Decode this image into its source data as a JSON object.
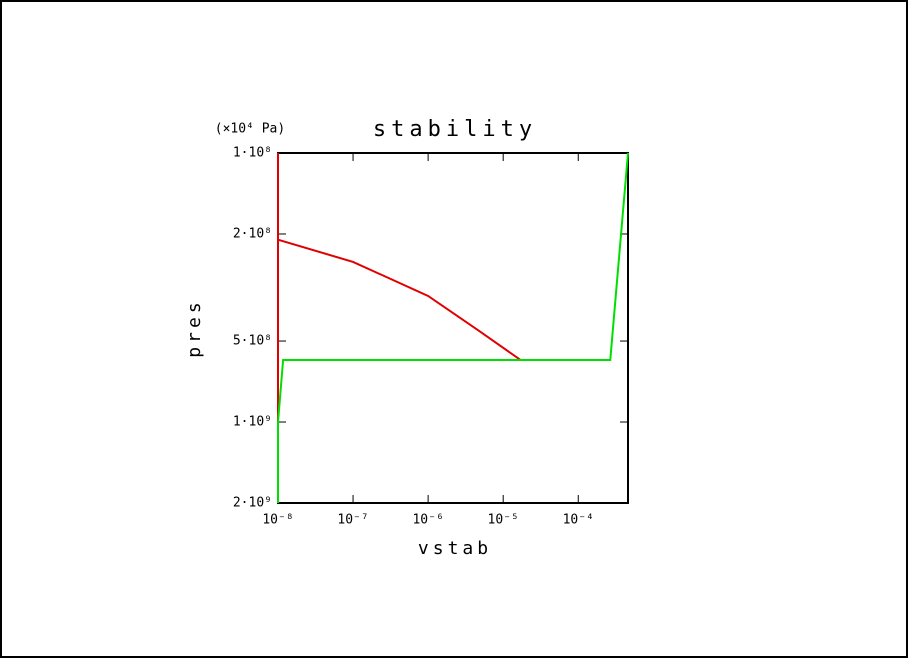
{
  "chart_data": {
    "type": "line",
    "title": "stability",
    "y_unit": "(×10⁴ Pa)",
    "xlabel": "vstab",
    "ylabel": "pres",
    "xscale": "log",
    "yscale": "log",
    "y_inverted": true,
    "xlim": [
      1e-08,
      0.00046
    ],
    "ylim": [
      100000000.0,
      2000000000.0
    ],
    "xticks": [
      {
        "value": 1e-08,
        "label": "10⁻⁸"
      },
      {
        "value": 1e-07,
        "label": "10⁻⁷"
      },
      {
        "value": 1e-06,
        "label": "10⁻⁶"
      },
      {
        "value": 1e-05,
        "label": "10⁻⁵"
      },
      {
        "value": 0.0001,
        "label": "10⁻⁴"
      }
    ],
    "yticks": [
      {
        "value": 100000000.0,
        "label": "1·10⁸"
      },
      {
        "value": 200000000.0,
        "label": "2·10⁸"
      },
      {
        "value": 500000000.0,
        "label": "5·10⁸"
      },
      {
        "value": 1000000000.0,
        "label": "1·10⁹"
      },
      {
        "value": 2000000000.0,
        "label": "2·10⁹"
      }
    ],
    "series": [
      {
        "color": "#e00000",
        "x": [
          1e-08,
          1e-08,
          null,
          1e-08,
          1e-07,
          1e-06,
          4.6e-06,
          1.7e-05
        ],
        "values": [
          980000000.0,
          100000000.0,
          null,
          210000000.0,
          254000000.0,
          340000000.0,
          455000000.0,
          588000000.0
        ]
      },
      {
        "color": "#00e000",
        "x": [
          1e-08,
          1e-08,
          1.17e-08,
          0.000267,
          0.00046
        ],
        "values": [
          2000000000.0,
          1000000000.0,
          588000000.0,
          588000000.0,
          100000000.0
        ]
      }
    ]
  }
}
